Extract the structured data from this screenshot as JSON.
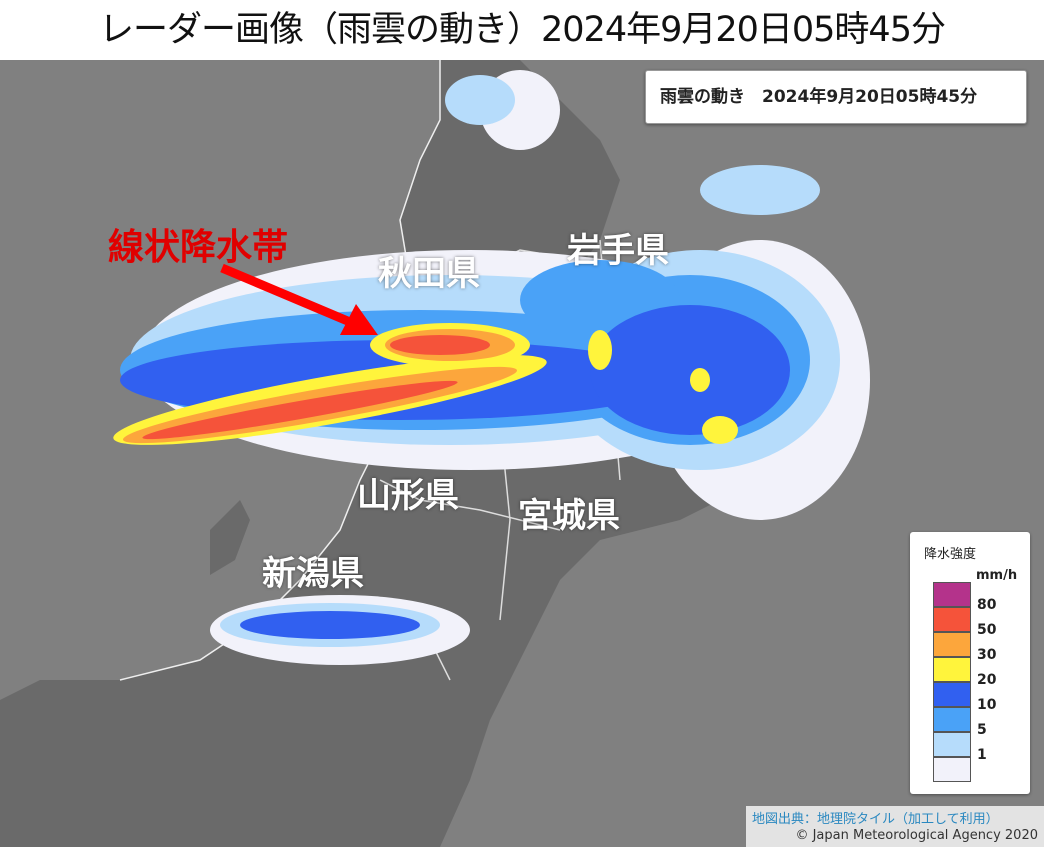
{
  "title": "レーダー画像（雨雲の動き）2024年9月20日05時45分",
  "map": {
    "time_box": "雨雲の動き　2024年9月20日05時45分",
    "annotation": "線状降水帯",
    "prefectures": [
      "秋田県",
      "岩手県",
      "山形県",
      "宮城県",
      "新潟県"
    ],
    "arrow_color": "#ff0000"
  },
  "legend": {
    "title": "降水強度",
    "unit": "mm/h",
    "colors": [
      "#b4338b",
      "#f5533a",
      "#fca63c",
      "#fff43c",
      "#3160f0",
      "#4aa2f7",
      "#b6dcfb",
      "#f2f2fa"
    ],
    "ticks": [
      "80",
      "50",
      "30",
      "20",
      "10",
      "5",
      "1"
    ]
  },
  "credit": {
    "source": "地図出典：地理院タイル（加工して利用）",
    "copyright": "© Japan Meteorological Agency 2020"
  }
}
